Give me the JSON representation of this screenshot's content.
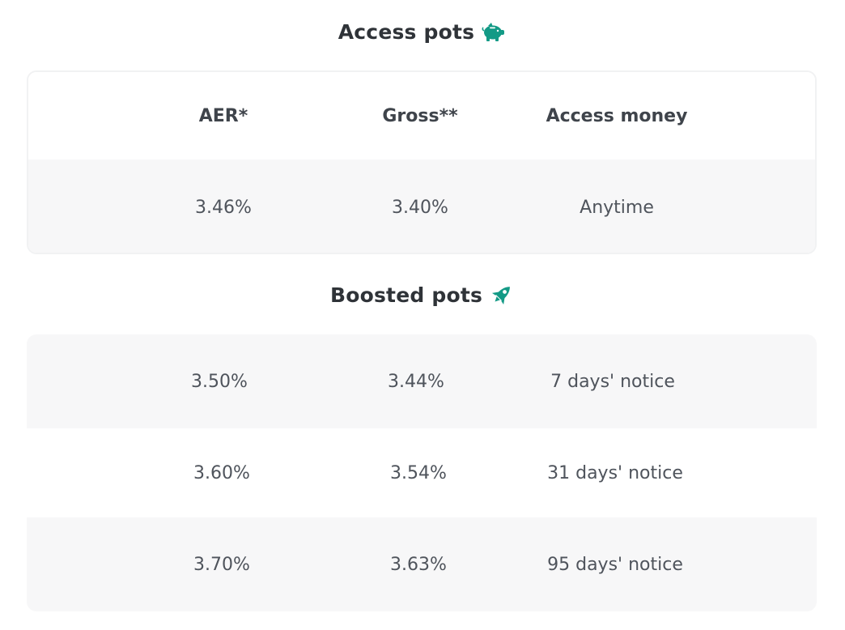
{
  "access": {
    "title": "Access pots",
    "icon": "piggy-bank-icon",
    "headers": {
      "aer": "AER*",
      "gross": "Gross**",
      "access": "Access money"
    },
    "rows": [
      {
        "aer": "3.46%",
        "gross": "3.40%",
        "access": "Anytime"
      }
    ]
  },
  "boosted": {
    "title": "Boosted pots",
    "icon": "rocket-icon",
    "rows": [
      {
        "aer": "3.50%",
        "gross": "3.44%",
        "access": "7 days' notice"
      },
      {
        "aer": "3.60%",
        "gross": "3.54%",
        "access": "31 days' notice"
      },
      {
        "aer": "3.70%",
        "gross": "3.63%",
        "access": "95 days' notice"
      }
    ]
  },
  "colors": {
    "accent": "#139a86",
    "title_text": "#2f3338",
    "body_text": "#4f545c",
    "row_shade": "#f7f7f8",
    "card_border": "#f1f2f3"
  }
}
